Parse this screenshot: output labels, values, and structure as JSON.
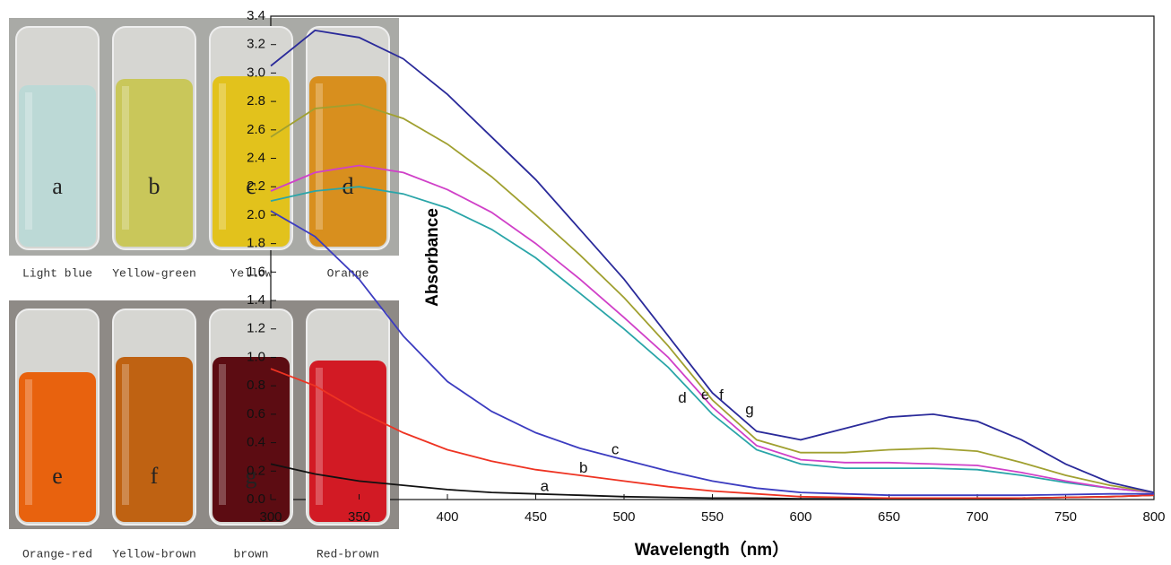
{
  "captions": [
    "Light blue",
    "Yellow-green",
    "Yellow",
    "Orange",
    "Orange-red",
    "Yellow-brown",
    "brown",
    "Red-brown"
  ],
  "chart_data": {
    "type": "line",
    "x_label": "Wavelength（nm）",
    "y_label": "Absorbance",
    "x": [
      300,
      325,
      350,
      375,
      400,
      425,
      450,
      475,
      500,
      525,
      550,
      575,
      600,
      625,
      650,
      675,
      700,
      725,
      750,
      775,
      800
    ],
    "xlim": [
      300,
      800
    ],
    "xticks": [
      300,
      350,
      400,
      450,
      500,
      550,
      600,
      650,
      700,
      750,
      800
    ],
    "ylim": [
      0,
      3.4
    ],
    "yticks": [
      {
        "value": 0,
        "label": "0.0"
      },
      0.2,
      0.4,
      0.6,
      0.8,
      {
        "value": 1,
        "label": "1.0"
      },
      1.2,
      1.4,
      1.6,
      1.8,
      {
        "value": 2,
        "label": "2.0"
      },
      2.2,
      2.4,
      2.6,
      2.8,
      {
        "value": 3,
        "label": "3.0"
      },
      3.2,
      3.4
    ],
    "grid": false,
    "series": [
      {
        "name": "a",
        "color": "#111111",
        "values": [
          0.25,
          0.18,
          0.13,
          0.1,
          0.07,
          0.05,
          0.04,
          0.03,
          0.02,
          0.015,
          0.01,
          0.01,
          0.005,
          0.005,
          0.005,
          0.005,
          0.005,
          0.01,
          0.015,
          0.02,
          0.03
        ]
      },
      {
        "name": "b",
        "color": "#ee3322",
        "values": [
          0.92,
          0.8,
          0.62,
          0.47,
          0.35,
          0.27,
          0.21,
          0.17,
          0.13,
          0.09,
          0.06,
          0.04,
          0.02,
          0.015,
          0.01,
          0.01,
          0.01,
          0.01,
          0.015,
          0.02,
          0.03
        ]
      },
      {
        "name": "c",
        "color": "#3c3cc0",
        "values": [
          2.03,
          1.85,
          1.55,
          1.15,
          0.83,
          0.62,
          0.47,
          0.36,
          0.28,
          0.2,
          0.13,
          0.08,
          0.05,
          0.04,
          0.03,
          0.03,
          0.03,
          0.03,
          0.035,
          0.04,
          0.04
        ]
      },
      {
        "name": "d",
        "color": "#2aa5a8",
        "values": [
          2.1,
          2.17,
          2.2,
          2.15,
          2.05,
          1.9,
          1.7,
          1.45,
          1.2,
          0.93,
          0.6,
          0.35,
          0.25,
          0.22,
          0.22,
          0.22,
          0.21,
          0.17,
          0.12,
          0.08,
          0.05
        ]
      },
      {
        "name": "e",
        "color": "#d040c8",
        "values": [
          2.17,
          2.3,
          2.35,
          2.3,
          2.18,
          2.02,
          1.8,
          1.55,
          1.28,
          1.0,
          0.65,
          0.38,
          0.28,
          0.26,
          0.26,
          0.25,
          0.24,
          0.19,
          0.13,
          0.08,
          0.05
        ]
      },
      {
        "name": "f",
        "color": "#a0a030",
        "values": [
          2.55,
          2.75,
          2.78,
          2.68,
          2.5,
          2.27,
          2.0,
          1.72,
          1.42,
          1.08,
          0.7,
          0.42,
          0.33,
          0.33,
          0.35,
          0.36,
          0.34,
          0.26,
          0.17,
          0.1,
          0.05
        ]
      },
      {
        "name": "g",
        "color": "#2a2a9a",
        "values": [
          3.05,
          3.3,
          3.25,
          3.1,
          2.85,
          2.55,
          2.25,
          1.9,
          1.55,
          1.15,
          0.75,
          0.48,
          0.42,
          0.5,
          0.58,
          0.6,
          0.55,
          0.42,
          0.25,
          0.12,
          0.05
        ]
      }
    ]
  }
}
